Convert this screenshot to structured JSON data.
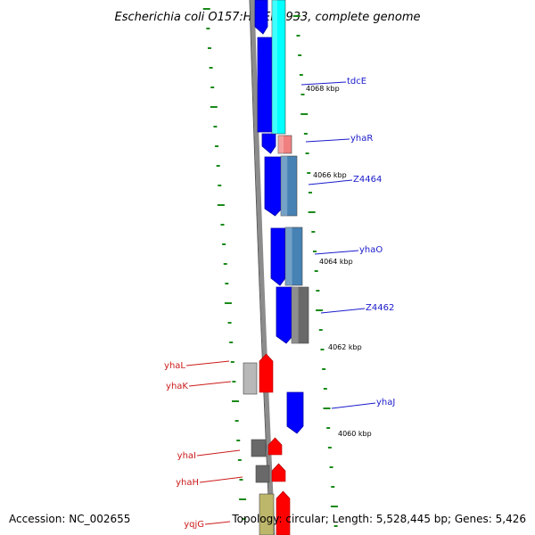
{
  "title": "Escherichia coli O157:H7 EDL933, complete genome",
  "footer": {
    "accession": "Accession: NC_002655",
    "topology": "Topology: circular; Length: 5,528,445 bp; Genes: 5,426"
  },
  "colors": {
    "backbone": "#8c8c8c",
    "tick": "#1a8a1a",
    "right_label": "#1a1acc",
    "left_label": "#cc1a1a"
  },
  "position_labels": [
    "4068 kbp",
    "4066 kbp",
    "4064 kbp",
    "4062 kbp",
    "4060 kbp"
  ],
  "genes_right": [
    {
      "name": "tdcE",
      "color": "#00ffff"
    },
    {
      "name": "yhaR",
      "color": "#f08080"
    },
    {
      "name": "Z4464",
      "color": "#4682b4"
    },
    {
      "name": "yhaO",
      "color": "#4682b4"
    },
    {
      "name": "Z4462",
      "color": "#696969"
    },
    {
      "name": "yhaJ",
      "color": "#0000ff"
    }
  ],
  "genes_left": [
    {
      "name": "yhaL",
      "color": "#ff0000"
    },
    {
      "name": "yhaK",
      "color": "#ff0000"
    },
    {
      "name": "yhaI",
      "color": "#ff0000"
    },
    {
      "name": "yhaH",
      "color": "#ff0000"
    },
    {
      "name": "yqjG",
      "color": "#ff0000"
    }
  ]
}
